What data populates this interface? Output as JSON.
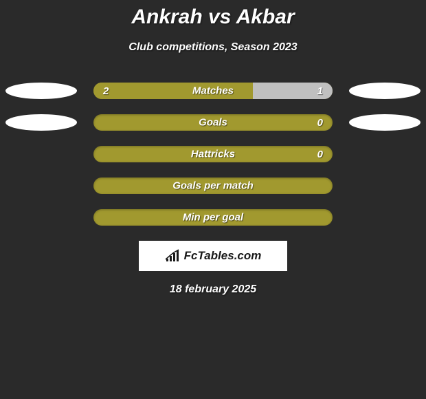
{
  "title": "Ankrah vs Akbar",
  "subtitle": "Club competitions, Season 2023",
  "colors": {
    "left_fill": "#a1992f",
    "right_fill": "#c0c0c0",
    "full_fill": "#a1992f",
    "bar_border": "#a1992f",
    "logo_bg": "#ffffff",
    "background": "#2a2a2a",
    "text": "#ffffff",
    "brand_text": "#1a1a1a"
  },
  "rows": [
    {
      "label": "Matches",
      "left_value": "2",
      "right_value": "1",
      "left_pct": 66.7,
      "right_pct": 33.3,
      "show_logos": true,
      "split": true
    },
    {
      "label": "Goals",
      "left_value": "",
      "right_value": "0",
      "left_pct": 0,
      "right_pct": 0,
      "show_logos": true,
      "split": false
    },
    {
      "label": "Hattricks",
      "left_value": "",
      "right_value": "0",
      "left_pct": 0,
      "right_pct": 0,
      "show_logos": false,
      "split": false
    },
    {
      "label": "Goals per match",
      "left_value": "",
      "right_value": "",
      "left_pct": 0,
      "right_pct": 0,
      "show_logos": false,
      "split": false
    },
    {
      "label": "Min per goal",
      "left_value": "",
      "right_value": "",
      "left_pct": 0,
      "right_pct": 0,
      "show_logos": false,
      "split": false
    }
  ],
  "brand": "FcTables.com",
  "date": "18 february 2025",
  "font": {
    "title_size": 30,
    "subtitle_size": 16,
    "bar_label_size": 15,
    "date_size": 16
  }
}
